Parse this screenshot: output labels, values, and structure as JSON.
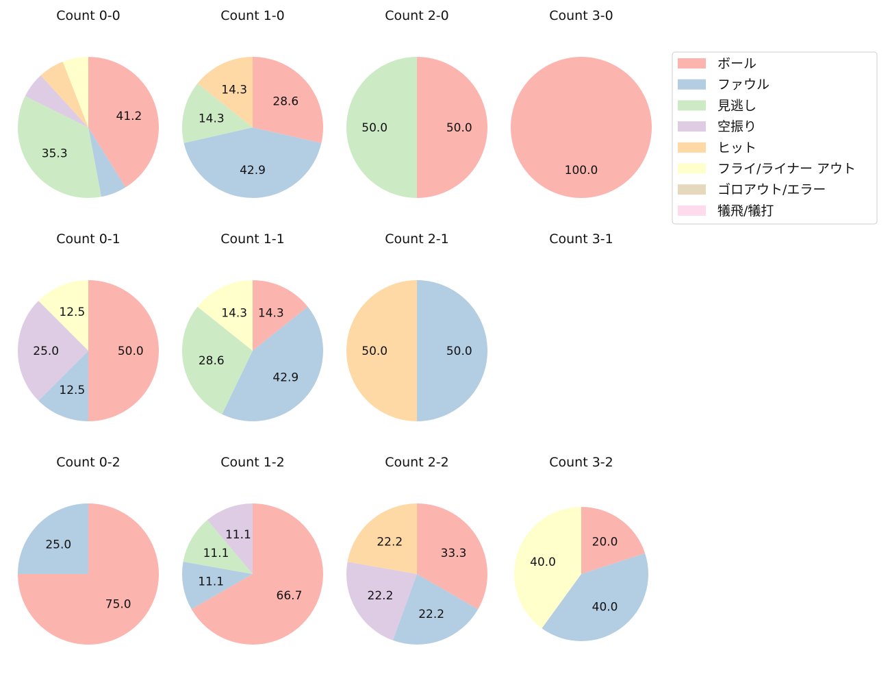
{
  "chart_data": {
    "type": "pie",
    "categories": [
      "ボール",
      "ファウル",
      "見逃し",
      "空振り",
      "ヒット",
      "フライ/ライナー アウト",
      "ゴロアウト/エラー",
      "犠飛/犠打"
    ],
    "colors": [
      "#fbb4ae",
      "#b3cde3",
      "#ccebc5",
      "#decbe4",
      "#fed9a6",
      "#ffffcc",
      "#e5d8bd",
      "#fddaec"
    ],
    "legend": {
      "position": "top-right"
    },
    "charts": [
      {
        "title": "Count 0-0",
        "values": [
          41.2,
          5.9,
          35.3,
          5.9,
          5.9,
          5.9,
          0,
          0
        ],
        "labels": [
          "41.2",
          "",
          "35.3",
          "",
          "",
          "",
          "",
          ""
        ]
      },
      {
        "title": "Count 1-0",
        "values": [
          28.6,
          42.9,
          14.3,
          0,
          14.3,
          0,
          0,
          0
        ],
        "labels": [
          "28.6",
          "42.9",
          "14.3",
          "",
          "14.3",
          "",
          "",
          ""
        ]
      },
      {
        "title": "Count 2-0",
        "values": [
          50.0,
          0,
          50.0,
          0,
          0,
          0,
          0,
          0
        ],
        "labels": [
          "50.0",
          "",
          "50.0",
          "",
          "",
          "",
          "",
          ""
        ]
      },
      {
        "title": "Count 3-0",
        "values": [
          100.0,
          0,
          0,
          0,
          0,
          0,
          0,
          0
        ],
        "labels": [
          "100.0",
          "",
          "",
          "",
          "",
          "",
          "",
          ""
        ]
      },
      {
        "title": "Count 0-1",
        "values": [
          50.0,
          12.5,
          0,
          25.0,
          0,
          12.5,
          0,
          0
        ],
        "labels": [
          "50.0",
          "12.5",
          "",
          "25.0",
          "",
          "12.5",
          "",
          ""
        ]
      },
      {
        "title": "Count 1-1",
        "values": [
          14.3,
          42.9,
          28.6,
          0,
          0,
          14.3,
          0,
          0
        ],
        "labels": [
          "14.3",
          "42.9",
          "28.6",
          "",
          "",
          "14.3",
          "",
          ""
        ]
      },
      {
        "title": "Count 2-1",
        "values": [
          0,
          50.0,
          0,
          0,
          50.0,
          0,
          0,
          0
        ],
        "labels": [
          "",
          "50.0",
          "",
          "",
          "50.0",
          "",
          "",
          ""
        ]
      },
      {
        "title": "Count 3-1",
        "values": [
          0,
          0,
          0,
          0,
          0,
          0,
          0,
          0
        ],
        "labels": [
          "",
          "",
          "",
          "",
          "",
          "",
          "",
          ""
        ]
      },
      {
        "title": "Count 0-2",
        "values": [
          75.0,
          25.0,
          0,
          0,
          0,
          0,
          0,
          0
        ],
        "labels": [
          "75.0",
          "25.0",
          "",
          "",
          "",
          "",
          "",
          ""
        ]
      },
      {
        "title": "Count 1-2",
        "values": [
          66.7,
          11.1,
          11.1,
          11.1,
          0,
          0,
          0,
          0
        ],
        "labels": [
          "66.7",
          "11.1",
          "11.1",
          "11.1",
          "",
          "",
          "",
          ""
        ]
      },
      {
        "title": "Count 2-2",
        "values": [
          33.3,
          22.2,
          0,
          22.2,
          22.2,
          0,
          0,
          0
        ],
        "labels": [
          "33.3",
          "22.2",
          "",
          "22.2",
          "22.2",
          "",
          "",
          ""
        ]
      },
      {
        "title": "Count 3-2",
        "values": [
          20.0,
          40.0,
          0,
          0,
          0,
          40.0,
          0,
          0
        ],
        "labels": [
          "20.0",
          "40.0",
          "",
          "",
          "",
          "40.0",
          "",
          ""
        ]
      }
    ]
  }
}
